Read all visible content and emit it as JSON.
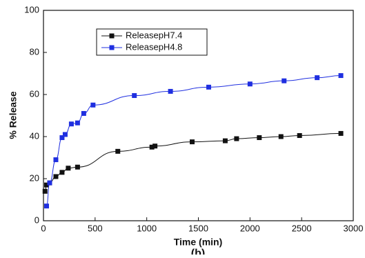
{
  "chart_data": {
    "type": "line",
    "xlabel": "Time (min)",
    "ylabel": "% Release",
    "caption": "(b)",
    "xlim": [
      0,
      3000
    ],
    "xticks": [
      0,
      500,
      1000,
      1500,
      2000,
      2500,
      3000
    ],
    "ylim": [
      0,
      100
    ],
    "yticks": [
      0,
      20,
      40,
      60,
      80,
      100
    ],
    "legend": "upper left",
    "series": [
      {
        "name": "ReleasepH7.4",
        "color": "#111111",
        "x": [
          15,
          30,
          60,
          120,
          180,
          240,
          330,
          720,
          1050,
          1080,
          1440,
          1760,
          1870,
          2090,
          2300,
          2480,
          2880
        ],
        "values": [
          14,
          17,
          18,
          21,
          23,
          25,
          25.5,
          33,
          35,
          35.5,
          37.5,
          38,
          39,
          39.5,
          40,
          40.5,
          41.5
        ]
      },
      {
        "name": "ReleasepH4.8",
        "color": "#1f2fe0",
        "x": [
          30,
          60,
          120,
          180,
          210,
          270,
          330,
          390,
          480,
          880,
          1230,
          1600,
          2000,
          2330,
          2650,
          2880
        ],
        "values": [
          7,
          18,
          29,
          39.5,
          41,
          46,
          46.5,
          51,
          55,
          59.5,
          61.5,
          63.5,
          65,
          66.5,
          68,
          69
        ]
      }
    ]
  }
}
